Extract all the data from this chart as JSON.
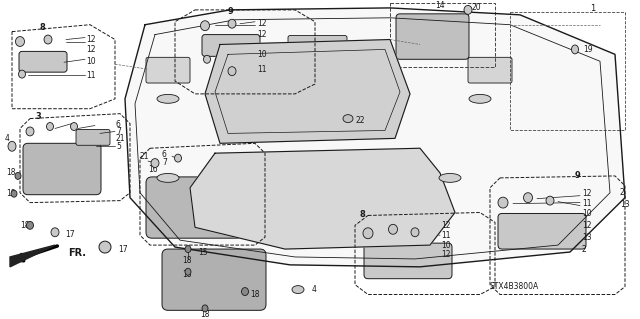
{
  "title": "",
  "bg_color": "#ffffff",
  "fig_width": 6.4,
  "fig_height": 3.19,
  "dpi": 100,
  "diagram_code": "STX4B3800A",
  "line_color": "#1a1a1a",
  "text_color": "#1a1a1a",
  "gray_fill": "#c8c8c8",
  "light_gray": "#e8e8e8",
  "dashed_box_color": "#555555"
}
